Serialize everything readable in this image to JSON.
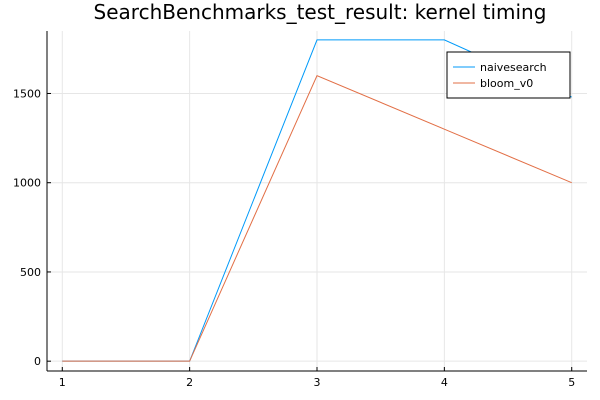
{
  "chart_data": {
    "type": "line",
    "title": "SearchBenchmarks_test_result: kernel timing",
    "xlabel": "",
    "ylabel": "",
    "x": [
      1,
      2,
      3,
      4,
      5
    ],
    "xlim": [
      0.88,
      5.12
    ],
    "ylim": [
      -55,
      1850
    ],
    "xticks": [
      1,
      2,
      3,
      4,
      5
    ],
    "yticks": [
      0,
      500,
      1000,
      1500
    ],
    "grid": true,
    "legend_position": "top-right",
    "series": [
      {
        "name": "naivesearch",
        "color": "#009af9",
        "values": [
          0,
          0,
          1800,
          1800,
          1480
        ]
      },
      {
        "name": "bloom_v0",
        "color": "#e26f46",
        "values": [
          0,
          0,
          1600,
          1300,
          1000
        ]
      }
    ]
  }
}
